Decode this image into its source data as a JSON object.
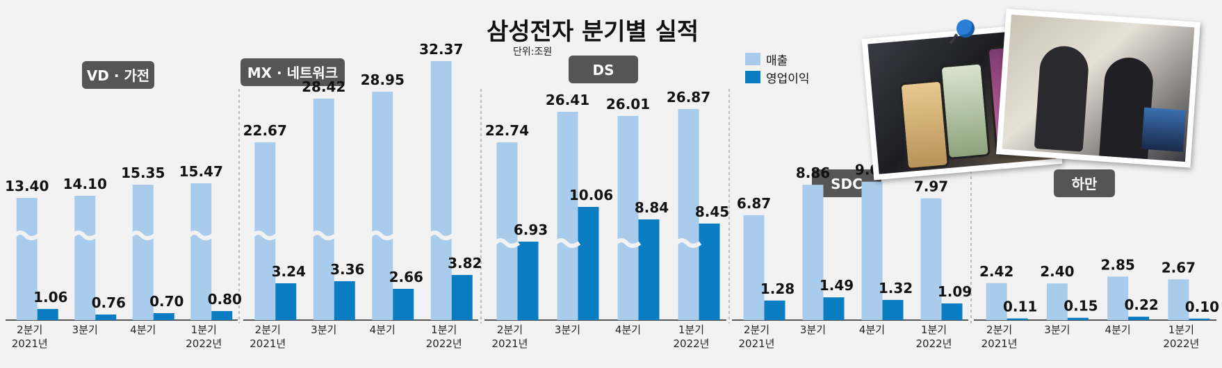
{
  "chart_data": {
    "type": "bar",
    "title": "삼성전자 분기별 실적",
    "unit": "단위:조원",
    "legend": [
      "매출",
      "영업이익"
    ],
    "colors": {
      "revenue": "#a9ccec",
      "profit": "#0a7cc1",
      "label_bg": "#555555"
    },
    "categories": [
      [
        "2분기",
        "2021년"
      ],
      [
        "3분기"
      ],
      [
        "4분기"
      ],
      [
        "1분기",
        "2022년"
      ]
    ],
    "panels": [
      {
        "name": "VD · 가전",
        "revenue": [
          13.4,
          14.1,
          15.35,
          15.47
        ],
        "profit": [
          1.06,
          0.76,
          0.7,
          0.8
        ],
        "axis_break": true
      },
      {
        "name": "MX · 네트워크",
        "revenue": [
          22.67,
          28.42,
          28.95,
          32.37
        ],
        "profit": [
          3.24,
          3.36,
          2.66,
          3.82
        ],
        "axis_break": true
      },
      {
        "name": "DS",
        "revenue": [
          22.74,
          26.41,
          26.01,
          26.87
        ],
        "profit": [
          6.93,
          10.06,
          8.84,
          8.45
        ],
        "axis_break": true
      },
      {
        "name": "SDC",
        "revenue": [
          6.87,
          8.86,
          9.06,
          7.97
        ],
        "profit": [
          1.28,
          1.49,
          1.32,
          1.09
        ],
        "axis_break": false
      },
      {
        "name": "하만",
        "revenue": [
          2.42,
          2.4,
          2.85,
          2.67
        ],
        "profit": [
          0.11,
          0.15,
          0.22,
          0.1
        ],
        "axis_break": false
      }
    ],
    "value_labels": {
      "revenue": [
        [
          "13.40",
          "14.10",
          "15.35",
          "15.47"
        ],
        [
          "22.67",
          "28.42",
          "28.95",
          "32.37"
        ],
        [
          "22.74",
          "26.41",
          "26.01",
          "26.87"
        ],
        [
          "6.87",
          "8.86",
          "9.06",
          "7.97"
        ],
        [
          "2.42",
          "2.40",
          "2.85",
          "2.67"
        ]
      ],
      "profit": [
        [
          "1.06",
          "0.76",
          "0.70",
          "0.80"
        ],
        [
          "3.24",
          "3.36",
          "2.66",
          "3.82"
        ],
        [
          "6.93",
          "10.06",
          "8.84",
          "8.45"
        ],
        [
          "1.28",
          "1.49",
          "1.32",
          "1.09"
        ],
        [
          "0.11",
          "0.15",
          "0.22",
          "0.10"
        ]
      ]
    }
  }
}
